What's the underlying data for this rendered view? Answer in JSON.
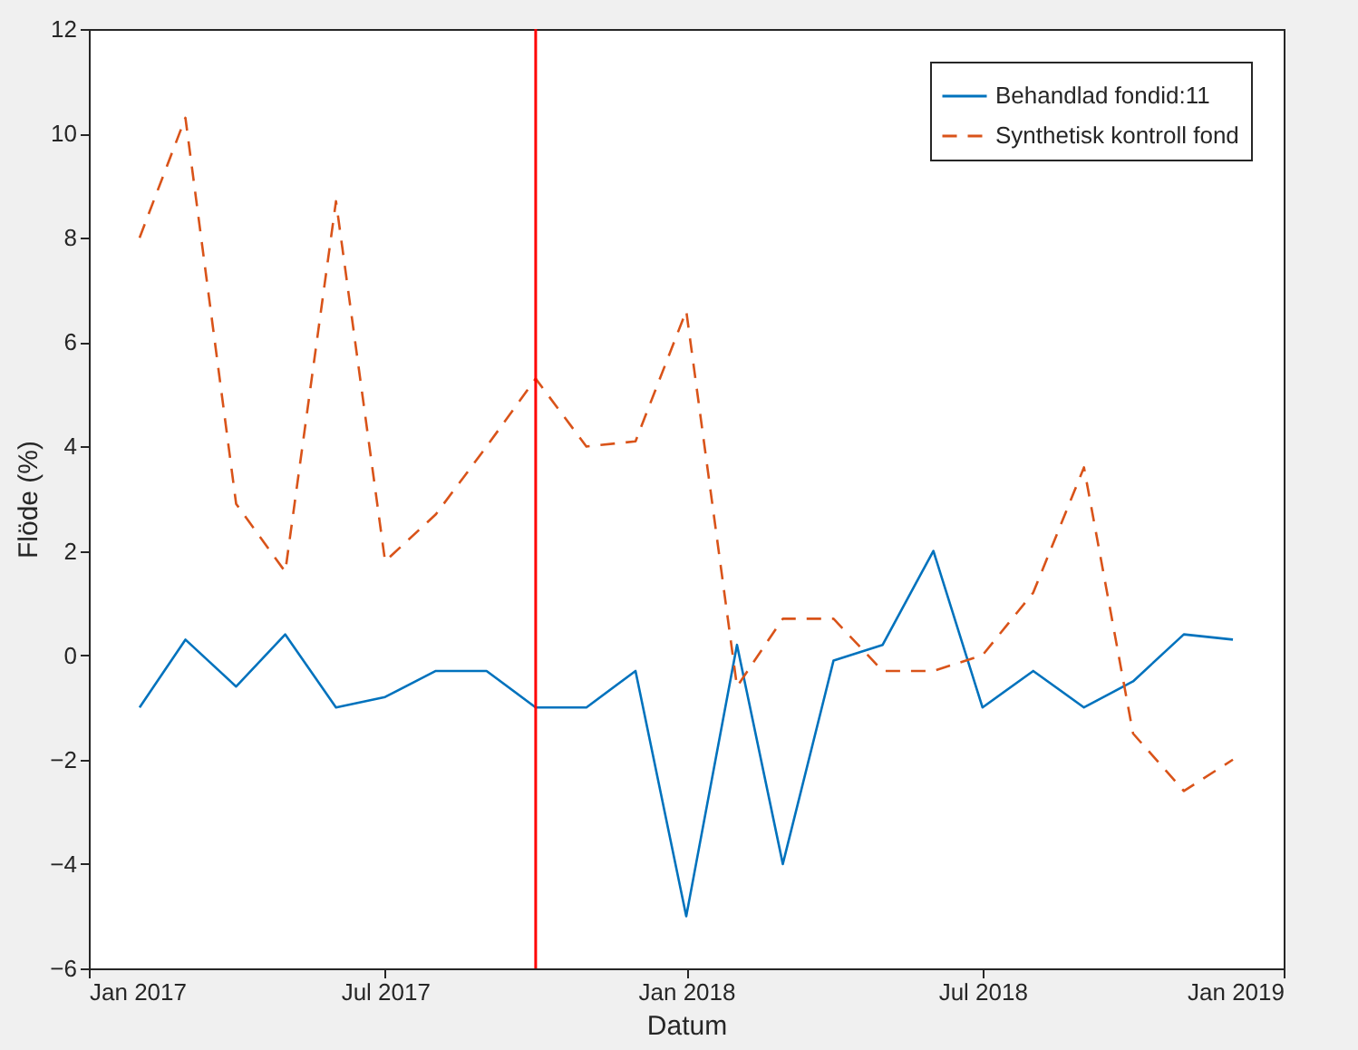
{
  "chart_data": {
    "type": "line",
    "xlabel": "Datum",
    "ylabel": "Flöde (%)",
    "x": [
      "2017-02",
      "2017-03",
      "2017-04",
      "2017-05",
      "2017-06",
      "2017-07",
      "2017-08",
      "2017-09",
      "2017-10",
      "2017-11",
      "2017-12",
      "2018-01",
      "2018-02",
      "2018-03",
      "2018-04",
      "2018-05",
      "2018-06",
      "2018-07",
      "2018-08",
      "2018-09",
      "2018-10",
      "2018-11",
      "2018-12"
    ],
    "series": [
      {
        "name": "Behandlad fondid:11",
        "color": "#0072bd",
        "line_style": "solid",
        "values": [
          -1.0,
          0.3,
          -0.6,
          0.4,
          -1.0,
          -0.8,
          -0.3,
          -0.3,
          -1.0,
          -1.0,
          -0.3,
          -5.0,
          0.2,
          -4.0,
          -0.1,
          0.2,
          2.0,
          -1.0,
          -0.3,
          -1.0,
          -0.5,
          0.4,
          0.3
        ]
      },
      {
        "name": "Synthetisk kontroll fond",
        "color": "#d95319",
        "line_style": "dashed",
        "values": [
          8.0,
          10.3,
          2.9,
          1.6,
          8.7,
          1.8,
          2.7,
          4.0,
          5.3,
          4.0,
          4.1,
          6.6,
          -0.6,
          0.7,
          0.7,
          -0.3,
          -0.3,
          0.0,
          1.2,
          3.6,
          -1.5,
          -2.6,
          -2.0
        ]
      }
    ],
    "xlim": [
      "2017-01",
      "2019-01"
    ],
    "xticks": [
      {
        "value": "2017-01",
        "label": "Jan 2017"
      },
      {
        "value": "2017-07",
        "label": "Jul 2017"
      },
      {
        "value": "2018-01",
        "label": "Jan 2018"
      },
      {
        "value": "2018-07",
        "label": "Jul 2018"
      },
      {
        "value": "2019-01",
        "label": "Jan 2019"
      }
    ],
    "ylim": [
      -6,
      12
    ],
    "yticks": [
      -6,
      -4,
      -2,
      0,
      2,
      4,
      6,
      8,
      10,
      12
    ],
    "ref_lines": [
      {
        "axis": "x",
        "value": "2017-10",
        "color": "#ff0000"
      }
    ],
    "grid": false,
    "legend": "top right"
  }
}
